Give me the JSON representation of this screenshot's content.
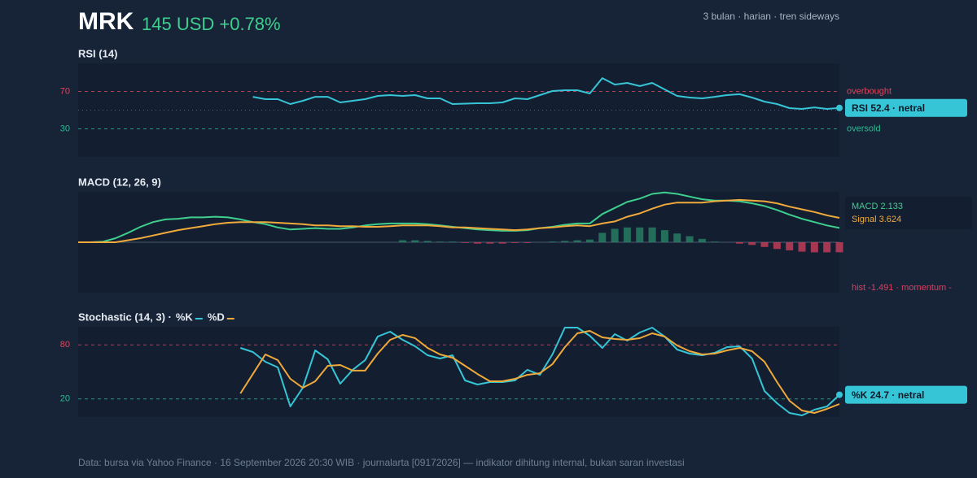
{
  "header": {
    "symbol": "MRK",
    "quote": "145 USD +0.78%",
    "meta": "3 bulan · harian · tren sideways"
  },
  "chart_data": [
    {
      "type": "line",
      "title": "RSI (14)",
      "ylim": [
        0,
        100
      ],
      "yticks": [
        30,
        70
      ],
      "midline": 50,
      "upper_label": "overbought",
      "lower_label": "oversold",
      "upper_color": "#d9475e",
      "lower_color": "#2fb890",
      "series": [
        {
          "color": "#36c5d6",
          "values": [
            null,
            null,
            null,
            null,
            null,
            null,
            null,
            null,
            null,
            null,
            null,
            null,
            null,
            null,
            64.3,
            61.7,
            61.7,
            56.5,
            60,
            64.3,
            64.3,
            58.3,
            60,
            61.7,
            65.2,
            66.1,
            65.2,
            66.1,
            62.6,
            62.6,
            56.5,
            57,
            57.4,
            57.4,
            58.3,
            62.6,
            61.7,
            66.1,
            70.4,
            71.3,
            71.3,
            67.8,
            84.3,
            77.4,
            79.1,
            75.7,
            79.1,
            72.2,
            65.2,
            63.5,
            62.6,
            64.3,
            66.1,
            67,
            63.5,
            59.1,
            56.5,
            52.2,
            51.3,
            53,
            51.3,
            52.4
          ]
        }
      ],
      "badge": "RSI 52.4 · netral"
    },
    {
      "type": "line",
      "title": "MACD (12, 26, 9)",
      "ylim": [
        -7.5,
        7.5
      ],
      "series": [
        {
          "color": "#3ecf8e",
          "values": [
            0,
            0,
            0.1,
            0.6,
            1.4,
            2.3,
            3.0,
            3.4,
            3.5,
            3.7,
            3.7,
            3.8,
            3.7,
            3.4,
            3.0,
            2.7,
            2.2,
            1.9,
            2.0,
            2.1,
            2.0,
            2.0,
            2.2,
            2.5,
            2.7,
            2.8,
            2.8,
            2.8,
            2.7,
            2.5,
            2.3,
            2.1,
            1.9,
            1.8,
            1.7,
            1.7,
            1.8,
            2.1,
            2.3,
            2.6,
            2.8,
            2.8,
            4.2,
            5.1,
            6.0,
            6.5,
            7.2,
            7.4,
            7.2,
            6.8,
            6.4,
            6.2,
            6.2,
            6.1,
            5.8,
            5.4,
            4.8,
            4.1,
            3.5,
            3.0,
            2.5,
            2.133
          ]
        },
        {
          "color": "#f0a93b",
          "values": [
            0,
            0,
            0,
            0,
            0.3,
            0.6,
            1.0,
            1.4,
            1.8,
            2.1,
            2.4,
            2.7,
            2.9,
            3.0,
            3.0,
            3.0,
            2.9,
            2.8,
            2.7,
            2.5,
            2.5,
            2.4,
            2.4,
            2.3,
            2.3,
            2.4,
            2.5,
            2.5,
            2.5,
            2.4,
            2.2,
            2.2,
            2.1,
            2.0,
            1.9,
            1.8,
            1.9,
            2.1,
            2.2,
            2.4,
            2.5,
            2.4,
            2.8,
            3.1,
            3.8,
            4.3,
            5.0,
            5.6,
            5.9,
            5.9,
            5.9,
            6.1,
            6.2,
            6.3,
            6.2,
            6.1,
            5.8,
            5.3,
            4.9,
            4.5,
            4.0,
            3.624
          ]
        },
        {
          "type": "bar",
          "color": "#2a8a6a",
          "neg_color": "#d8405e",
          "values": [
            null,
            null,
            null,
            null,
            null,
            null,
            null,
            null,
            null,
            null,
            null,
            null,
            null,
            null,
            null,
            null,
            null,
            null,
            null,
            null,
            null,
            null,
            null,
            null,
            null,
            null,
            0.3,
            0.3,
            0.2,
            0.1,
            0.1,
            -0.1,
            -0.2,
            -0.2,
            -0.2,
            -0.1,
            -0.1,
            0.0,
            0.1,
            0.2,
            0.3,
            0.4,
            1.4,
            2.0,
            2.2,
            2.2,
            2.2,
            1.8,
            1.3,
            0.9,
            0.5,
            0.1,
            0.0,
            -0.2,
            -0.4,
            -0.7,
            -1.0,
            -1.2,
            -1.4,
            -1.5,
            -1.5,
            -1.491
          ]
        }
      ],
      "annotations": [
        "MACD 2.133",
        "Signal 3.624",
        "hist -1.491 · momentum -"
      ]
    },
    {
      "type": "line",
      "title": "Stochastic (14, 3) ·",
      "ylim": [
        0,
        100
      ],
      "yticks": [
        20,
        80
      ],
      "upper_color": "#d9475e",
      "lower_color": "#2fb890",
      "series": [
        {
          "name": "%K",
          "color": "#36c5d6",
          "values": [
            null,
            null,
            null,
            null,
            null,
            null,
            null,
            null,
            null,
            null,
            null,
            null,
            null,
            76.6,
            72.1,
            61.3,
            55,
            11.7,
            32.4,
            73.9,
            64,
            36.9,
            52.3,
            63.1,
            89.2,
            94.6,
            85.6,
            78.4,
            68.5,
            64.9,
            68.5,
            40.5,
            36,
            38.7,
            38.7,
            40.5,
            52.3,
            46.8,
            69.4,
            99.1,
            99.1,
            90.1,
            76.6,
            91.9,
            84.7,
            93.7,
            99.1,
            89.2,
            74.8,
            70.3,
            68.5,
            71.2,
            77.5,
            78.4,
            64.9,
            28.8,
            15.3,
            4.5,
            1.8,
            8.1,
            11.7,
            24.7
          ]
        },
        {
          "name": "%D",
          "color": "#f0a93b",
          "values": [
            null,
            null,
            null,
            null,
            null,
            null,
            null,
            null,
            null,
            null,
            null,
            null,
            null,
            26.1,
            47.7,
            69.4,
            63.1,
            42.3,
            32.4,
            39.6,
            56.8,
            57.7,
            51.4,
            51.4,
            70.3,
            85.6,
            91,
            87.4,
            76.6,
            69.4,
            65.8,
            56.8,
            47.7,
            39.6,
            39.6,
            42.3,
            46.8,
            48.6,
            58.6,
            77.5,
            92.8,
            95.5,
            88.3,
            86.5,
            85.6,
            87.4,
            92.8,
            89.2,
            79.3,
            73,
            69.4,
            70.3,
            73.9,
            76.6,
            73,
            61.3,
            38.7,
            18,
            7.2,
            4.5,
            9,
            14.4
          ]
        }
      ],
      "badge": "%K 24.7 · netral"
    }
  ],
  "footer": "Data: bursa via Yahoo Finance · 16 September 2026 20:30 WIB · journalarta [09172026] — indikator dihitung internal, bukan saran investasi"
}
